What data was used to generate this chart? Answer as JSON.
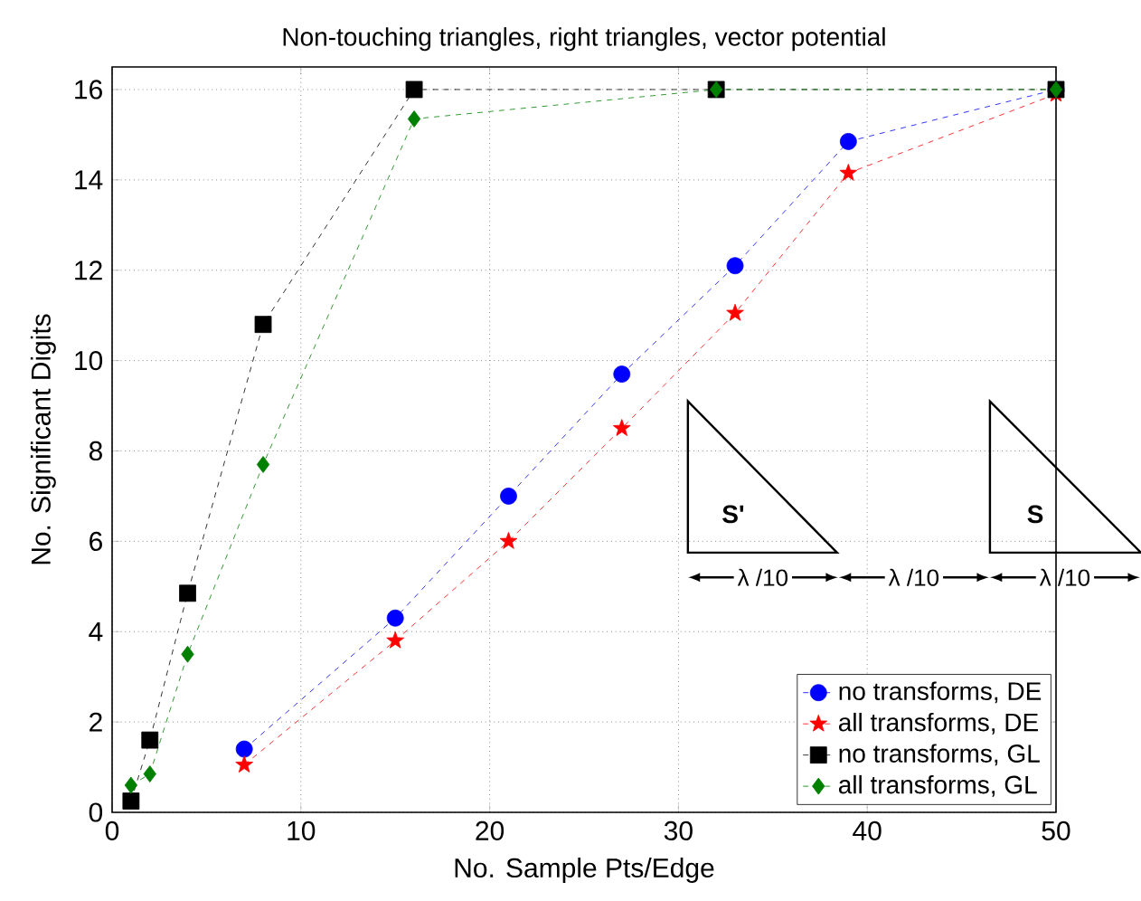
{
  "chart_data": {
    "type": "line",
    "title": "Non-touching triangles, right triangles, vector potential",
    "xlabel": "No. Sample Pts/Edge",
    "ylabel": "No. Significant Digits",
    "series": [
      {
        "name": "no transforms, DE",
        "color": "#0000ff",
        "marker": "circle",
        "x": [
          7,
          15,
          21,
          27,
          33,
          39,
          50
        ],
        "values": [
          1.4,
          4.3,
          7.0,
          9.7,
          12.1,
          14.85,
          16
        ]
      },
      {
        "name": "all transforms, DE",
        "color": "#ff0000",
        "marker": "star",
        "x": [
          7,
          15,
          21,
          27,
          33,
          39,
          50
        ],
        "values": [
          1.05,
          3.8,
          6.0,
          8.5,
          11.05,
          14.15,
          15.9
        ]
      },
      {
        "name": "no transforms, GL",
        "color": "#000000",
        "marker": "square",
        "x": [
          1,
          2,
          4,
          8,
          16,
          32,
          50
        ],
        "values": [
          0.25,
          1.6,
          4.85,
          10.8,
          16,
          16,
          16
        ]
      },
      {
        "name": "all transforms, GL",
        "color": "#008000",
        "marker": "diamond",
        "x": [
          1,
          2,
          4,
          8,
          16,
          32,
          50
        ],
        "values": [
          0.6,
          0.85,
          3.5,
          7.7,
          15.35,
          16,
          16
        ]
      }
    ],
    "xlim": [
      0,
      50
    ],
    "xticks": [
      0,
      10,
      20,
      30,
      40,
      50
    ],
    "ylim": [
      0,
      16.5
    ],
    "yticks": [
      0,
      2,
      4,
      6,
      8,
      10,
      12,
      14,
      16
    ],
    "grid": true,
    "legend": "bottom right",
    "line_style": "dashed",
    "annotations": [
      "S'",
      "S",
      "λ /10",
      "λ /10",
      "λ /10"
    ]
  }
}
